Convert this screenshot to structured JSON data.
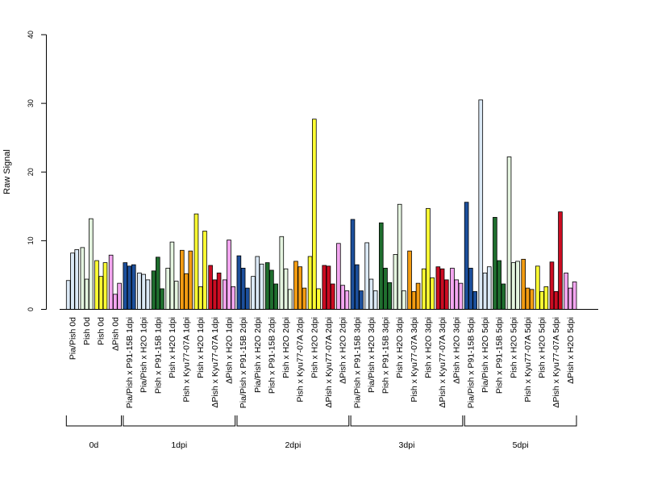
{
  "chart_data": {
    "type": "bar",
    "ylabel": "Raw Signal",
    "ylim": [
      0,
      40
    ],
    "yticks": [
      0,
      10,
      20,
      30,
      40
    ],
    "grid": false,
    "legend": "none",
    "bars_per_category": 3,
    "categories": [
      {
        "label": "Pia/Pish 0d",
        "group": "0d",
        "color": "#dbe9f6",
        "values": [
          4.2,
          8.2,
          8.7
        ]
      },
      {
        "label": "Pish 0d",
        "group": "0d",
        "color": "#e5f5e0",
        "values": [
          9.0,
          4.4,
          13.2
        ]
      },
      {
        "label": "Pish 0d",
        "group": "0d",
        "color": "#ffff33",
        "values": [
          7.1,
          4.8,
          6.8
        ]
      },
      {
        "label": "ΔPish 0d",
        "group": "0d",
        "color": "#f3a6f0",
        "values": [
          7.9,
          2.2,
          3.8
        ]
      },
      {
        "label": "Pia/Pish x P91-15B 1dpi",
        "group": "1dpi",
        "color": "#1c4f9c",
        "values": [
          6.8,
          6.3,
          6.5
        ]
      },
      {
        "label": "Pia/Pish x H2O 1dpi",
        "group": "1dpi",
        "color": "#dbe9f6",
        "values": [
          5.3,
          5.1,
          4.3
        ]
      },
      {
        "label": "Pish x P91-15B 1dpi",
        "group": "1dpi",
        "color": "#1f6e2e",
        "values": [
          5.6,
          7.6,
          3.0
        ]
      },
      {
        "label": "Pish x H2O 1dpi",
        "group": "1dpi",
        "color": "#e5f5e0",
        "values": [
          6.0,
          9.8,
          4.1
        ]
      },
      {
        "label": "Pish x Kyu77-07A 1dpi",
        "group": "1dpi",
        "color": "#f39c12",
        "values": [
          8.6,
          5.2,
          8.5
        ]
      },
      {
        "label": "Pish x H2O 1dpi",
        "group": "1dpi",
        "color": "#ffff33",
        "values": [
          13.9,
          3.3,
          11.4
        ]
      },
      {
        "label": "ΔPish x Kyu77-07A 1dpi",
        "group": "1dpi",
        "color": "#cc0c22",
        "values": [
          6.4,
          4.3,
          5.3
        ]
      },
      {
        "label": "ΔPish x H2O 1dpi",
        "group": "1dpi",
        "color": "#f3a6f0",
        "values": [
          4.3,
          10.1,
          3.3
        ]
      },
      {
        "label": "Pia/Pish x P91-15B 2dpi",
        "group": "2dpi",
        "color": "#1c4f9c",
        "values": [
          7.8,
          6.0,
          3.1
        ]
      },
      {
        "label": "Pia/Pish x H2O 2dpi",
        "group": "2dpi",
        "color": "#dbe9f6",
        "values": [
          4.8,
          7.7,
          6.6
        ]
      },
      {
        "label": "Pish x P91-15B 2dpi",
        "group": "2dpi",
        "color": "#1f6e2e",
        "values": [
          6.8,
          5.7,
          3.7
        ]
      },
      {
        "label": "Pish x H2O 2dpi",
        "group": "2dpi",
        "color": "#e5f5e0",
        "values": [
          10.6,
          5.9,
          2.9
        ]
      },
      {
        "label": "Pish x Kyu77-07A 2dpi",
        "group": "2dpi",
        "color": "#f39c12",
        "values": [
          7.0,
          6.2,
          3.1
        ]
      },
      {
        "label": "Pish x H2O 2dpi",
        "group": "2dpi",
        "color": "#ffff33",
        "values": [
          7.7,
          27.7,
          3.0
        ]
      },
      {
        "label": "ΔPish x Kyu77-07A 2dpi",
        "group": "2dpi",
        "color": "#cc0c22",
        "values": [
          6.4,
          6.3,
          3.7
        ]
      },
      {
        "label": "ΔPish x H2O 2dpi",
        "group": "2dpi",
        "color": "#f3a6f0",
        "values": [
          9.6,
          3.5,
          2.7
        ]
      },
      {
        "label": "Pia/Pish x P91-15B 3dpi",
        "group": "3dpi",
        "color": "#1c4f9c",
        "values": [
          13.1,
          6.5,
          2.7
        ]
      },
      {
        "label": "Pia/Pish x H2O 3dpi",
        "group": "3dpi",
        "color": "#dbe9f6",
        "values": [
          9.7,
          4.4,
          2.7
        ]
      },
      {
        "label": "Pish x P91-15B 3dpi",
        "group": "3dpi",
        "color": "#1f6e2e",
        "values": [
          12.6,
          6.0,
          3.9
        ]
      },
      {
        "label": "Pish x H2O 3dpi",
        "group": "3dpi",
        "color": "#e5f5e0",
        "values": [
          8.0,
          15.3,
          2.7
        ]
      },
      {
        "label": "Pish x Kyu77-07A 3dpi",
        "group": "3dpi",
        "color": "#f39c12",
        "values": [
          8.5,
          2.6,
          3.8
        ]
      },
      {
        "label": "Pish x H2O 3dpi",
        "group": "3dpi",
        "color": "#ffff33",
        "values": [
          5.9,
          14.7,
          4.6
        ]
      },
      {
        "label": "ΔPish x Kyu77-07A 3dpi",
        "group": "3dpi",
        "color": "#cc0c22",
        "values": [
          6.2,
          5.9,
          4.3
        ]
      },
      {
        "label": "ΔPish x H2O 3dpi",
        "group": "3dpi",
        "color": "#f3a6f0",
        "values": [
          6.0,
          4.3,
          3.8
        ]
      },
      {
        "label": "Pia/Pish x P91-15B 5dpi",
        "group": "5dpi",
        "color": "#1c4f9c",
        "values": [
          15.6,
          6.0,
          2.6
        ]
      },
      {
        "label": "Pia/Pish x H2O 5dpi",
        "group": "5dpi",
        "color": "#dbe9f6",
        "values": [
          30.5,
          5.3,
          6.2
        ]
      },
      {
        "label": "Pish x P91-15B 5dpi",
        "group": "5dpi",
        "color": "#1f6e2e",
        "values": [
          13.4,
          7.1,
          3.7
        ]
      },
      {
        "label": "Pish x H2O 5dpi",
        "group": "5dpi",
        "color": "#e5f5e0",
        "values": [
          22.2,
          6.8,
          7.0
        ]
      },
      {
        "label": "Pish x Kyu77-07A 5dpi",
        "group": "5dpi",
        "color": "#f39c12",
        "values": [
          7.3,
          3.1,
          2.9
        ]
      },
      {
        "label": "Pish x H2O 5dpi",
        "group": "5dpi",
        "color": "#ffff33",
        "values": [
          6.3,
          2.6,
          3.3
        ]
      },
      {
        "label": "ΔPish x Kyu77-07A 5dpi",
        "group": "5dpi",
        "color": "#cc0c22",
        "values": [
          6.9,
          2.6,
          14.2
        ]
      },
      {
        "label": "ΔPish x H2O 5dpi",
        "group": "5dpi",
        "color": "#f3a6f0",
        "values": [
          5.3,
          3.1,
          4.0
        ]
      }
    ],
    "groups": [
      "0d",
      "1dpi",
      "2dpi",
      "3dpi",
      "5dpi"
    ]
  }
}
